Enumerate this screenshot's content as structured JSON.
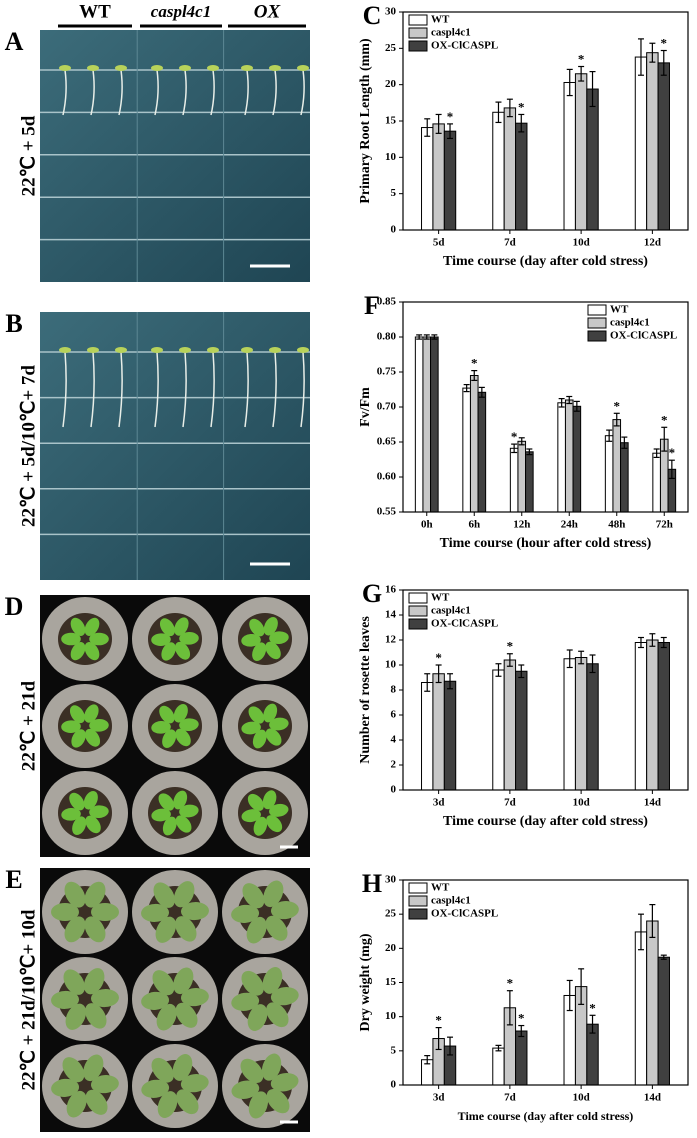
{
  "genotype_headers": [
    "WT",
    "caspl4c1",
    "OX"
  ],
  "photo_panels": [
    {
      "panel": "A",
      "condition": "22℃ + 5d"
    },
    {
      "panel": "B",
      "condition": "22℃ + 5d/10℃+ 7d"
    },
    {
      "panel": "D",
      "condition": "22℃ + 21d"
    },
    {
      "panel": "E",
      "condition": "22℃ + 21d/10℃+ 10d"
    }
  ],
  "chart_data": [
    {
      "type": "bar",
      "panel": "C",
      "ylabel": "Primary Root Length (mm)",
      "xlabel": "Time course (day after cold stress)",
      "categories": [
        "5d",
        "7d",
        "10d",
        "12d"
      ],
      "ylim": [
        0,
        30
      ],
      "yticks": [
        0,
        5,
        10,
        15,
        20,
        25,
        30
      ],
      "legend": "upper left",
      "significance_mark": "*",
      "series": [
        {
          "name": "WT",
          "color": "#ffffff",
          "values": [
            14.1,
            16.2,
            20.3,
            23.8
          ],
          "errors": [
            1.2,
            1.4,
            1.8,
            2.5
          ],
          "significant": [
            false,
            false,
            false,
            false
          ]
        },
        {
          "name": "caspl4c1",
          "color": "#c8c8c8",
          "values": [
            14.6,
            16.8,
            21.5,
            24.4
          ],
          "errors": [
            1.3,
            1.2,
            1.0,
            1.3
          ],
          "significant": [
            false,
            false,
            true,
            false
          ]
        },
        {
          "name": "OX-ClCASPL",
          "color": "#404040",
          "values": [
            13.6,
            14.7,
            19.4,
            23.0
          ],
          "errors": [
            1.0,
            1.2,
            2.4,
            1.7
          ],
          "significant": [
            true,
            true,
            false,
            true
          ]
        }
      ]
    },
    {
      "type": "bar",
      "panel": "F",
      "ylabel": "Fv/Fm",
      "xlabel": "Time course (hour after cold stress)",
      "categories": [
        "0h",
        "6h",
        "12h",
        "24h",
        "48h",
        "72h"
      ],
      "ylim": [
        0.55,
        0.85
      ],
      "yticks": [
        0.55,
        {
          "value": 0.6,
          "label": "0.60"
        },
        0.65,
        {
          "value": 0.7,
          "label": "0.70"
        },
        0.75,
        {
          "value": 0.8,
          "label": "0.80"
        },
        0.85
      ],
      "legend": "upper right",
      "significance_mark": "*",
      "series": [
        {
          "name": "WT",
          "color": "#ffffff",
          "values": [
            0.8,
            0.727,
            0.641,
            0.706,
            0.659,
            0.634
          ],
          "errors": [
            0.003,
            0.005,
            0.006,
            0.006,
            0.008,
            0.006
          ],
          "significant": [
            false,
            false,
            true,
            false,
            false,
            false
          ]
        },
        {
          "name": "caspl4c1",
          "color": "#c8c8c8",
          "values": [
            0.8,
            0.745,
            0.651,
            0.71,
            0.682,
            0.654
          ],
          "errors": [
            0.003,
            0.007,
            0.005,
            0.005,
            0.009,
            0.017
          ],
          "significant": [
            false,
            true,
            false,
            false,
            true,
            true
          ]
        },
        {
          "name": "OX-ClCASPL",
          "color": "#404040",
          "values": [
            0.8,
            0.721,
            0.636,
            0.701,
            0.649,
            0.611
          ],
          "errors": [
            0.003,
            0.007,
            0.004,
            0.007,
            0.008,
            0.013
          ],
          "significant": [
            false,
            false,
            false,
            false,
            false,
            true
          ]
        }
      ]
    },
    {
      "type": "bar",
      "panel": "G",
      "ylabel": "Number of rosette leaves",
      "xlabel": "Time course (day after cold stress)",
      "categories": [
        "3d",
        "7d",
        "10d",
        "14d"
      ],
      "ylim": [
        0,
        16
      ],
      "yticks": [
        0,
        2,
        4,
        6,
        8,
        10,
        12,
        14,
        16
      ],
      "legend": "upper left",
      "significance_mark": "*",
      "series": [
        {
          "name": "WT",
          "color": "#ffffff",
          "values": [
            8.6,
            9.6,
            10.5,
            11.8
          ],
          "errors": [
            0.7,
            0.5,
            0.7,
            0.4
          ],
          "significant": [
            false,
            false,
            false,
            false
          ]
        },
        {
          "name": "caspl4c1",
          "color": "#c8c8c8",
          "values": [
            9.3,
            10.4,
            10.6,
            12.0
          ],
          "errors": [
            0.7,
            0.5,
            0.5,
            0.5
          ],
          "significant": [
            true,
            true,
            false,
            false
          ]
        },
        {
          "name": "OX-ClCASPL",
          "color": "#404040",
          "values": [
            8.7,
            9.5,
            10.1,
            11.8
          ],
          "errors": [
            0.6,
            0.5,
            0.7,
            0.4
          ],
          "significant": [
            false,
            false,
            false,
            false
          ]
        }
      ]
    },
    {
      "type": "bar",
      "panel": "H",
      "ylabel": "Dry weight (mg)",
      "xlabel": "Time course (day after cold stress)",
      "categories": [
        "3d",
        "7d",
        "10d",
        "14d"
      ],
      "ylim": [
        0,
        30
      ],
      "yticks": [
        0,
        5,
        10,
        15,
        20,
        25,
        30
      ],
      "legend": "upper left",
      "significance_mark": "*",
      "series": [
        {
          "name": "WT",
          "color": "#ffffff",
          "values": [
            3.7,
            5.4,
            13.1,
            22.4
          ],
          "errors": [
            0.6,
            0.4,
            2.2,
            2.6
          ],
          "significant": [
            false,
            false,
            false,
            false
          ]
        },
        {
          "name": "caspl4c1",
          "color": "#c8c8c8",
          "values": [
            6.8,
            11.3,
            14.4,
            24.0
          ],
          "errors": [
            1.6,
            2.5,
            2.6,
            2.4
          ],
          "significant": [
            true,
            true,
            false,
            false
          ]
        },
        {
          "name": "OX-ClCASPL",
          "color": "#404040",
          "values": [
            5.7,
            7.9,
            8.9,
            18.7
          ],
          "errors": [
            1.3,
            0.8,
            1.3,
            0.3
          ],
          "significant": [
            false,
            true,
            true,
            false
          ]
        }
      ]
    }
  ]
}
